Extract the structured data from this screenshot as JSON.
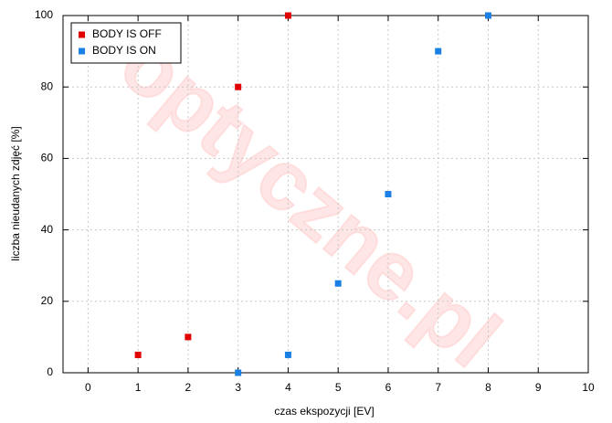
{
  "chart_data": {
    "type": "scatter",
    "watermark": "optyczne.pl",
    "x_label": "czas ekspozycji [EV]",
    "y_label": "liczba nieudanych zdjęć [%]",
    "series": [
      {
        "name": "BODY IS OFF",
        "color": "#e00000",
        "x": [
          1,
          2,
          3,
          4
        ],
        "values": [
          5,
          10,
          80,
          100
        ]
      },
      {
        "name": "BODY IS ON",
        "color": "#1a80e6",
        "x": [
          3,
          4,
          5,
          6,
          7,
          8
        ],
        "values": [
          0,
          5,
          25,
          50,
          90,
          100
        ]
      }
    ],
    "xlim": [
      -0.5,
      10
    ],
    "xticks": [
      0,
      1,
      2,
      3,
      4,
      5,
      6,
      7,
      8,
      9,
      10
    ],
    "ylim": [
      0,
      100
    ],
    "yticks": [
      0,
      20,
      40,
      60,
      80,
      100
    ],
    "grid": true,
    "legend": "top-left"
  }
}
